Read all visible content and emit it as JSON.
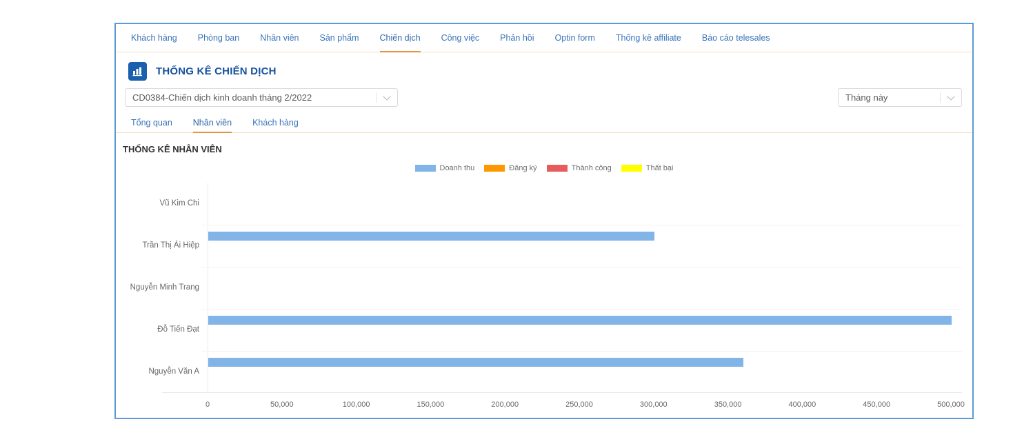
{
  "window": {
    "border_color": "#5b9bd5",
    "accent_orange": "#e2943f",
    "tab_blue": "#3a74b8"
  },
  "top_tabs": {
    "items": [
      "Khách hàng",
      "Phòng ban",
      "Nhân viên",
      "Sản phẩm",
      "Chiến dịch",
      "Công việc",
      "Phản hồi",
      "Optin form",
      "Thống kê affiliate",
      "Báo cáo telesales"
    ],
    "active": "Chiến dịch"
  },
  "header": {
    "title": "THỐNG KÊ CHIẾN DỊCH",
    "icon": "bar-chart-icon",
    "icon_bg": "#1a60ae"
  },
  "filters": {
    "campaign_select": {
      "value": "CD0384-Chiến dịch kinh doanh tháng 2/2022",
      "icon": "chevron-down-icon"
    },
    "period_select": {
      "value": "Tháng này",
      "icon": "chevron-down-icon"
    }
  },
  "sub_tabs": {
    "items": [
      "Tổng quan",
      "Nhân viên",
      "Khách hàng"
    ],
    "active": "Nhân viên"
  },
  "chart_section_title": "THỐNG KÊ NHÂN VIÊN",
  "chart_data": {
    "type": "bar",
    "orientation": "horizontal",
    "title": "THỐNG KÊ NHÂN VIÊN",
    "categories": [
      "Vũ Kim Chi",
      "Trần Thị Ái Hiệp",
      "Nguyễn Minh Trang",
      "Đỗ Tiến Đạt",
      "Nguyễn Văn A"
    ],
    "series": [
      {
        "name": "Doanh thu",
        "color": "#82b4e8",
        "values": [
          0,
          300000,
          0,
          500000,
          360000
        ]
      },
      {
        "name": "Đăng ký",
        "color": "#ff9800",
        "values": [
          0,
          0,
          0,
          0,
          0
        ]
      },
      {
        "name": "Thành công",
        "color": "#e75b5b",
        "values": [
          0,
          0,
          0,
          0,
          0
        ]
      },
      {
        "name": "Thất bại",
        "color": "#ffff00",
        "values": [
          0,
          0,
          0,
          0,
          0
        ]
      }
    ],
    "xlim": [
      0,
      500000
    ],
    "xticks": [
      0,
      50000,
      100000,
      150000,
      200000,
      250000,
      300000,
      350000,
      400000,
      450000,
      500000
    ],
    "legend_position": "top-center",
    "grid": "row-separators"
  }
}
